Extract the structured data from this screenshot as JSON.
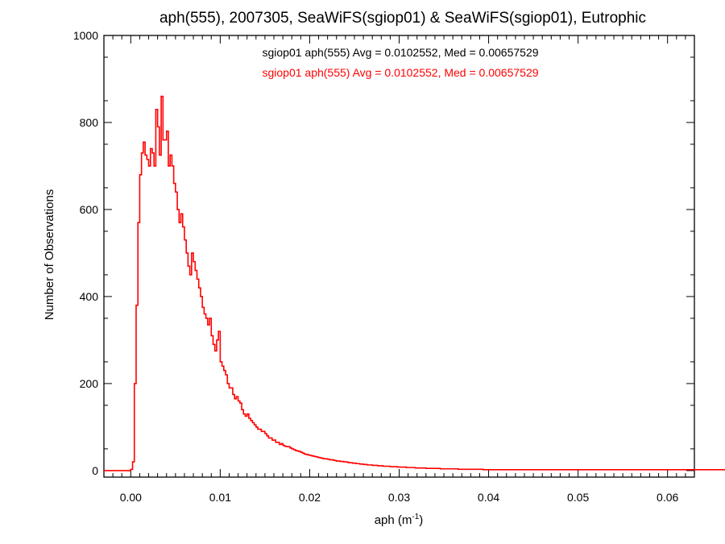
{
  "chart_data": {
    "type": "histogram",
    "title": "aph(555), 2007305, SeaWiFS(sgiop01) & SeaWiFS(sgiop01), Eutrophic",
    "xlabel": {
      "base": "aph (m",
      "sup": "-1",
      "close": ")"
    },
    "ylabel": "Number of Observations",
    "xlim": [
      -0.003,
      0.063
    ],
    "ylim": [
      -15,
      1000
    ],
    "x_ticks": [
      "0.00",
      "0.01",
      "0.02",
      "0.03",
      "0.04",
      "0.05",
      "0.06"
    ],
    "x_tick_values": [
      0.0,
      0.01,
      0.02,
      0.03,
      0.04,
      0.05,
      0.06
    ],
    "y_ticks": [
      "0",
      "200",
      "400",
      "600",
      "800",
      "1000"
    ],
    "y_tick_values": [
      0,
      200,
      400,
      600,
      800,
      1000
    ],
    "grid": false,
    "legend": [
      {
        "text": "sgiop01 aph(555) Avg = 0.0102552, Med = 0.00657529",
        "color": "#000000"
      },
      {
        "text": "sgiop01 aph(555) Avg = 0.0102552, Med = 0.00657529",
        "color": "#ff0000"
      }
    ],
    "series": [
      {
        "color": "#ff0000",
        "bin_start": -0.003,
        "bin_width": 0.0002,
        "values": [
          0,
          0,
          0,
          0,
          0,
          0,
          0,
          0,
          0,
          0,
          0,
          0,
          0,
          0,
          0,
          3,
          20,
          200,
          380,
          570,
          680,
          730,
          755,
          725,
          715,
          700,
          740,
          730,
          700,
          830,
          790,
          725,
          860,
          760,
          760,
          780,
          700,
          725,
          700,
          660,
          640,
          600,
          570,
          590,
          560,
          530,
          500,
          470,
          450,
          500,
          480,
          460,
          440,
          420,
          400,
          375,
          360,
          350,
          335,
          350,
          310,
          290,
          275,
          300,
          320,
          250,
          240,
          230,
          220,
          200,
          190,
          190,
          175,
          165,
          170,
          160,
          155,
          140,
          130,
          125,
          130,
          120,
          115,
          110,
          105,
          100,
          95,
          95,
          90,
          90,
          85,
          80,
          75,
          75,
          70,
          70,
          65,
          65,
          60,
          62,
          58,
          56,
          55,
          55,
          52,
          50,
          48,
          46,
          45,
          44,
          42,
          40,
          38,
          37,
          36,
          35,
          34,
          33,
          32,
          31,
          30,
          29,
          28,
          27,
          27,
          26,
          25,
          25,
          24,
          23,
          22,
          22,
          21,
          21,
          20,
          20,
          19,
          18,
          18,
          17,
          17,
          16,
          16,
          15,
          15,
          14,
          14,
          13,
          13,
          13,
          12,
          12,
          12,
          11,
          11,
          11,
          10,
          10,
          10,
          10,
          9,
          9,
          9,
          9,
          8,
          8,
          8,
          8,
          8,
          7,
          7,
          7,
          7,
          7,
          6,
          6,
          6,
          6,
          6,
          6,
          5,
          5,
          5,
          5,
          5,
          5,
          5,
          5,
          4,
          4,
          4,
          4,
          4,
          4,
          4,
          4,
          4,
          4,
          3,
          3,
          3,
          3,
          3,
          3,
          3,
          3,
          3,
          3,
          3,
          3,
          3,
          3,
          2,
          2,
          2,
          2,
          2,
          2,
          2,
          2,
          2,
          2,
          2,
          2,
          2,
          2,
          2,
          2,
          2,
          2,
          2,
          2,
          2,
          2,
          2,
          2,
          2,
          2,
          2,
          2,
          2,
          2,
          2,
          2,
          2,
          2,
          2,
          2,
          2,
          2,
          2,
          2,
          2,
          2,
          2,
          2,
          2,
          2,
          2,
          2,
          2,
          2,
          2,
          2,
          2,
          2,
          2,
          2,
          2,
          2,
          2,
          2,
          2,
          2,
          2,
          2,
          2,
          2,
          2,
          2,
          2,
          2,
          2,
          2,
          2,
          2,
          2,
          2,
          2,
          2,
          2,
          2,
          2,
          2,
          2,
          2,
          2,
          2,
          2,
          2,
          2,
          2,
          2,
          2,
          2,
          2,
          2,
          2,
          2,
          2,
          2,
          2,
          2,
          2,
          2,
          2,
          2,
          2,
          2,
          2,
          2,
          2,
          2,
          2,
          2,
          2,
          2,
          2,
          2,
          2,
          2,
          2,
          2,
          2,
          2,
          2,
          2,
          2,
          2,
          2,
          2,
          2,
          2,
          2,
          2,
          2,
          2,
          2,
          2,
          2
        ]
      }
    ]
  }
}
